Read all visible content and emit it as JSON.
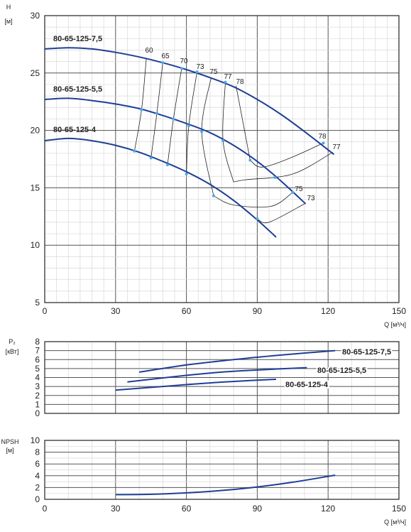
{
  "colors": {
    "curve": "#1f3f96",
    "dot": "#4aa8e8",
    "grid_minor": "#d8d8d8",
    "grid_major": "#555555",
    "iso": "#222222"
  },
  "chart_data": [
    {
      "type": "line",
      "ylabel": "H",
      "yunit": "[м]",
      "xlabel": "Q [м³/ч]",
      "xlim": [
        0,
        150
      ],
      "ylim": [
        5,
        30
      ],
      "x_ticks": [
        "0",
        "30",
        "60",
        "90",
        "120",
        "150"
      ],
      "y_ticks": [
        "5",
        "10",
        "15",
        "20",
        "25",
        "30"
      ],
      "grid": true,
      "series": [
        {
          "name": "80-65-125-7,5",
          "x": [
            0,
            10,
            20,
            30,
            40,
            50,
            60,
            70,
            80,
            90,
            100,
            110,
            122.5
          ],
          "y": [
            27.1,
            27.2,
            27.1,
            26.8,
            26.4,
            25.9,
            25.3,
            24.6,
            23.8,
            22.7,
            21.4,
            19.9,
            17.9
          ]
        },
        {
          "name": "80-65-125-5,5",
          "x": [
            0,
            10,
            20,
            30,
            40,
            50,
            60,
            70,
            80,
            90,
            100,
            110.5
          ],
          "y": [
            22.7,
            22.8,
            22.6,
            22.3,
            21.9,
            21.3,
            20.6,
            19.8,
            18.7,
            17.3,
            15.6,
            13.6
          ]
        },
        {
          "name": "80-65-125-4",
          "x": [
            0,
            10,
            20,
            30,
            40,
            50,
            60,
            70,
            80,
            90,
            98
          ],
          "y": [
            19.1,
            19.3,
            19.1,
            18.7,
            18.1,
            17.3,
            16.4,
            15.3,
            13.9,
            12.2,
            10.7
          ]
        }
      ],
      "efficiency_labels": [
        "60",
        "65",
        "70",
        "73",
        "75",
        "77",
        "78",
        "78",
        "77",
        "75",
        "73"
      ],
      "efficiency_lines": [
        {
          "label": "60",
          "points": [
            [
              43,
              26.2
            ],
            [
              41,
              21.8
            ],
            [
              38,
              18.2
            ]
          ]
        },
        {
          "label": "65",
          "points": [
            [
              50,
              25.9
            ],
            [
              47.5,
              21.5
            ],
            [
              45,
              17.6
            ]
          ]
        },
        {
          "label": "70",
          "points": [
            [
              58,
              25.4
            ],
            [
              54.5,
              21.0
            ],
            [
              52,
              17.0
            ]
          ]
        },
        {
          "label": "73",
          "points": [
            [
              64.5,
              25.1
            ],
            [
              61,
              20.4
            ],
            [
              60,
              16.2
            ]
          ]
        },
        {
          "label": "75",
          "points": [
            [
              70.5,
              24.6
            ],
            [
              66.5,
              19.9
            ],
            [
              71.5,
              14.3
            ]
          ],
          "right": {
            "label": "75",
            "points": [
              [
                105,
                14.6
              ],
              [
                96,
                13.4
              ],
              [
                80,
                13.5
              ],
              [
                71.5,
                14.3
              ]
            ]
          }
        },
        {
          "label": "77",
          "points": [
            [
              76.5,
              24.2
            ],
            [
              75.5,
              19.1
            ],
            [
              80,
              15.5
            ]
          ],
          "right": {
            "label": "77",
            "points": [
              [
                122,
                18.1
              ],
              [
                105,
                16.2
              ],
              [
                85,
                15.7
              ],
              [
                80,
                15.5
              ]
            ]
          }
        },
        {
          "label": "78",
          "points": [
            [
              81,
              23.9
            ],
            [
              87,
              17.4
            ]
          ],
          "right": {
            "label": "78",
            "points": [
              [
                118,
                18.9
              ],
              [
                104,
                17.6
              ],
              [
                92,
                16.8
              ],
              [
                87,
                17.4
              ]
            ]
          }
        },
        {
          "label": "73",
          "points": [
            [
              110,
              13.6
            ],
            [
              95,
              12.0
            ],
            [
              90,
              12.3
            ]
          ]
        }
      ],
      "dots": [
        [
          50,
          25.9
        ],
        [
          58,
          25.4
        ],
        [
          64.5,
          25.1
        ],
        [
          76.5,
          24.2
        ],
        [
          118,
          18.9
        ],
        [
          41,
          21.8
        ],
        [
          47.5,
          21.5
        ],
        [
          54.5,
          21.0
        ],
        [
          61,
          20.4
        ],
        [
          66.5,
          19.9
        ],
        [
          75.5,
          19.1
        ],
        [
          87,
          17.4
        ],
        [
          97.5,
          15.9
        ],
        [
          105,
          14.6
        ],
        [
          38,
          18.2
        ],
        [
          45,
          17.6
        ],
        [
          52,
          17.0
        ],
        [
          60,
          16.2
        ],
        [
          71.5,
          14.3
        ],
        [
          90,
          12.3
        ]
      ]
    },
    {
      "type": "line",
      "ylabel": "P₂",
      "yunit": "[кВт]",
      "xlim": [
        0,
        150
      ],
      "ylim": [
        0,
        8
      ],
      "y_ticks": [
        "0",
        "1",
        "2",
        "3",
        "4",
        "5",
        "6",
        "7",
        "8"
      ],
      "grid": true,
      "series": [
        {
          "name": "80-65-125-7,5",
          "x": [
            40,
            60,
            80,
            100,
            123
          ],
          "y": [
            4.6,
            5.4,
            6.0,
            6.5,
            7.0
          ]
        },
        {
          "name": "80-65-125-5,5",
          "x": [
            35,
            55,
            75,
            95,
            111
          ],
          "y": [
            3.5,
            4.1,
            4.6,
            4.9,
            5.1
          ]
        },
        {
          "name": "80-65-125-4",
          "x": [
            30,
            50,
            70,
            90,
            98
          ],
          "y": [
            2.6,
            3.0,
            3.4,
            3.7,
            3.8
          ]
        }
      ]
    },
    {
      "type": "line",
      "ylabel": "NPSH",
      "yunit": "[м]",
      "xlabel": "Q [м³/ч]",
      "xlim": [
        0,
        150
      ],
      "ylim": [
        0,
        10
      ],
      "x_ticks": [
        "0",
        "30",
        "60",
        "90",
        "120",
        "150"
      ],
      "y_ticks": [
        "0",
        "2",
        "4",
        "6",
        "8",
        "10"
      ],
      "grid": true,
      "series": [
        {
          "name": "",
          "x": [
            30,
            45,
            60,
            75,
            90,
            105,
            123
          ],
          "y": [
            0.8,
            0.85,
            1.1,
            1.5,
            2.1,
            2.9,
            4.1
          ]
        }
      ]
    }
  ]
}
